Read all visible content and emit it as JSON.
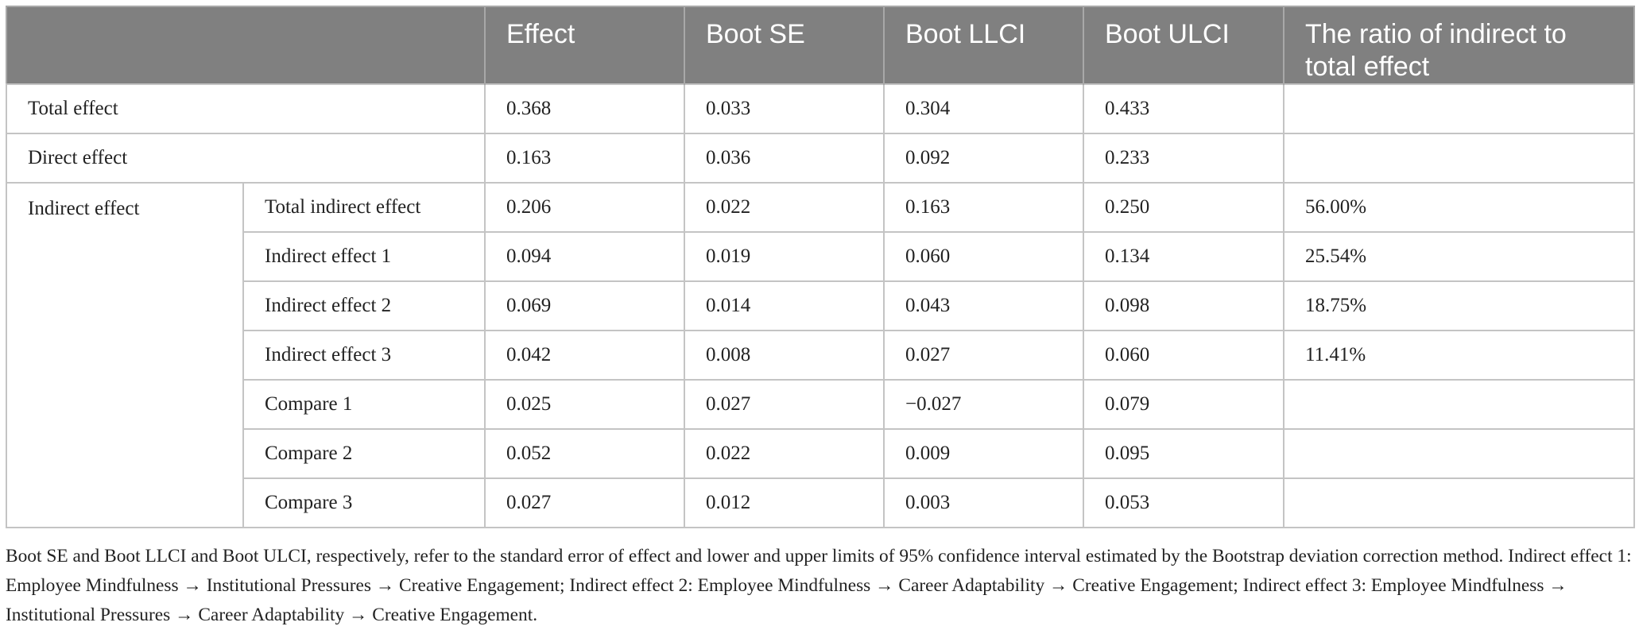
{
  "table": {
    "header": [
      "Effect",
      "Boot SE",
      "Boot LLCI",
      "Boot ULCI",
      "The ratio of indirect to total effect"
    ],
    "rows": [
      {
        "label": "Total effect",
        "values": [
          "0.368",
          "0.033",
          "0.304",
          "0.433"
        ]
      },
      {
        "label": "Direct effect",
        "values": [
          "0.163",
          "0.036",
          "0.092",
          "0.233"
        ]
      }
    ],
    "group": {
      "label": "Indirect effect",
      "rows": [
        {
          "label": "Total indirect effect",
          "values": [
            "0.206",
            "0.022",
            "0.163",
            "0.250",
            "56.00%"
          ]
        },
        {
          "label": "Indirect effect 1",
          "values": [
            "0.094",
            "0.019",
            "0.060",
            "0.134",
            "25.54%"
          ]
        },
        {
          "label": "Indirect effect 2",
          "values": [
            "0.069",
            "0.014",
            "0.043",
            "0.098",
            "18.75%"
          ]
        },
        {
          "label": "Indirect effect 3",
          "values": [
            "0.042",
            "0.008",
            "0.027",
            "0.060",
            "11.41%"
          ]
        },
        {
          "label": "Compare 1",
          "values": [
            "0.025",
            "0.027",
            "−0.027",
            "0.079"
          ]
        },
        {
          "label": "Compare 2",
          "values": [
            "0.052",
            "0.022",
            "0.009",
            "0.095"
          ]
        },
        {
          "label": "Compare 3",
          "values": [
            "0.027",
            "0.012",
            "0.003",
            "0.053"
          ]
        }
      ]
    }
  },
  "note": "Boot SE and Boot LLCI and Boot ULCI, respectively, refer to the standard error of effect and lower and upper limits of 95% confidence interval estimated by the Bootstrap deviation correction method. Indirect effect 1: Employee Mindfulness → Institutional Pressures → Creative Engagement; Indirect effect 2: Employee Mindfulness → Career Adaptability → Creative Engagement; Indirect effect 3: Employee Mindfulness → Institutional Pressures → Career Adaptability → Creative Engagement."
}
